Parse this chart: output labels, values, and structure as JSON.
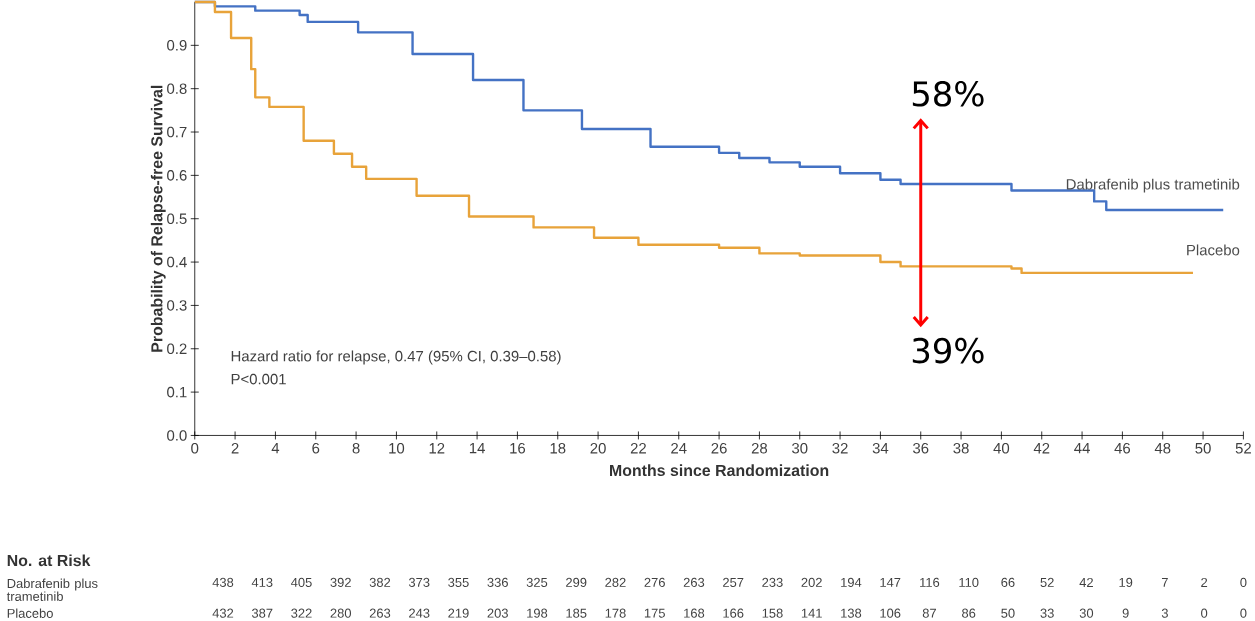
{
  "chart_data": {
    "type": "step",
    "xlabel": "Months since Randomization",
    "ylabel": "Probability of Relapse-free Survival",
    "xlim": [
      0,
      52
    ],
    "xticks": [
      0,
      2,
      4,
      6,
      8,
      10,
      12,
      14,
      16,
      18,
      20,
      22,
      24,
      26,
      28,
      30,
      32,
      34,
      36,
      38,
      40,
      42,
      44,
      46,
      48,
      50,
      52
    ],
    "ylim": [
      0,
      1
    ],
    "yticks": [
      {
        "value": 0,
        "label": "0.0"
      },
      {
        "value": 0.1,
        "label": "0.1"
      },
      {
        "value": 0.2,
        "label": "0.2"
      },
      {
        "value": 0.3,
        "label": "0.3"
      },
      {
        "value": 0.4,
        "label": "0.4"
      },
      {
        "value": 0.5,
        "label": "0.5"
      },
      {
        "value": 0.6,
        "label": "0.6"
      },
      {
        "value": 0.7,
        "label": "0.7"
      },
      {
        "value": 0.8,
        "label": "0.8"
      },
      {
        "value": 0.9,
        "label": "0.9"
      }
    ],
    "series": [
      {
        "name": "Dabrafenib plus trametinib",
        "color": "#4472c4",
        "x": [
          0,
          1,
          3,
          5.2,
          5.6,
          8.1,
          10.8,
          13.8,
          16.3,
          19.2,
          22.6,
          26,
          27,
          28.5,
          30,
          32,
          34,
          35,
          39,
          40.5,
          44.3,
          44.6,
          45.2,
          51
        ],
        "values": [
          1.0,
          0.99,
          0.98,
          0.97,
          0.954,
          0.93,
          0.88,
          0.82,
          0.75,
          0.707,
          0.666,
          0.652,
          0.64,
          0.63,
          0.62,
          0.605,
          0.59,
          0.58,
          0.58,
          0.565,
          0.565,
          0.54,
          0.52,
          0.52
        ]
      },
      {
        "name": "Placebo",
        "color": "#e8a33a",
        "x": [
          0,
          1,
          1.8,
          2.8,
          3,
          3.7,
          5.4,
          6.9,
          7.8,
          8.5,
          11,
          13.6,
          16.8,
          19.8,
          22,
          26,
          28,
          30,
          34,
          35,
          40.5,
          41,
          49.5
        ],
        "values": [
          1.0,
          0.977,
          0.917,
          0.845,
          0.78,
          0.758,
          0.68,
          0.65,
          0.62,
          0.592,
          0.553,
          0.505,
          0.48,
          0.456,
          0.44,
          0.433,
          0.42,
          0.415,
          0.4,
          0.39,
          0.385,
          0.375,
          0.375
        ]
      }
    ],
    "annotations": [
      "Hazard ratio for relapse, 0.47  (95% CI, 0.39–0.58)",
      "P<0.001",
      {
        "text": "58%",
        "x": 36,
        "y": 0.58
      },
      {
        "text": "39%",
        "x": 36,
        "y": 0.39
      },
      "No. at Risk",
      "Dabrafenib plus trametinib",
      "438",
      "413",
      "405",
      "392",
      "382",
      "373",
      "355",
      "336",
      "325",
      "299",
      "282",
      "276",
      "263",
      "257",
      "233",
      "202",
      "194",
      "147",
      "116",
      "110",
      "66",
      "52",
      "42",
      "19",
      "7",
      "2",
      "0",
      "Placebo",
      "432",
      "387",
      "322",
      "280",
      "263",
      "243",
      "219",
      "203",
      "198",
      "185",
      "178",
      "175",
      "168",
      "166",
      "158",
      "141",
      "138",
      "106",
      "87",
      "86",
      "50",
      "33",
      "30",
      "9",
      "3",
      "0",
      "0"
    ]
  }
}
